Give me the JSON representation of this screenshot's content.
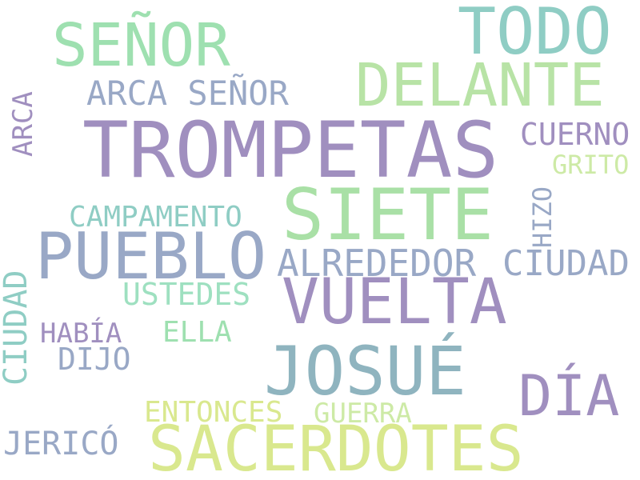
{
  "words": [
    {
      "text": "TROMPETAS",
      "color": "#a08fbf"
    },
    {
      "text": "SACERDOTES",
      "color": "#d9e88e"
    },
    {
      "text": "SIETE",
      "color": "#a9e0a6"
    },
    {
      "text": "PUEBLO",
      "color": "#99a8c6"
    },
    {
      "text": "JOSUÉ",
      "color": "#8fb4bf"
    },
    {
      "text": "VUELTA",
      "color": "#a08fbf"
    },
    {
      "text": "DELANTE",
      "color": "#b8e3a6"
    },
    {
      "text": "TODO",
      "color": "#8fcdc4"
    },
    {
      "text": "SEÑOR",
      "color": "#9ee0b0"
    },
    {
      "text": "DÍA",
      "color": "#a08fbf"
    },
    {
      "text": "ALREDEDOR",
      "color": "#99a8c6"
    },
    {
      "text": "CIUDAD",
      "color": "#99a8c6"
    },
    {
      "text": "ARCA SEÑOR",
      "color": "#99a8c6"
    },
    {
      "text": "CUERNO",
      "color": "#a08fbf"
    },
    {
      "text": "USTEDES",
      "color": "#9ee0c0"
    },
    {
      "text": "ENTONCES",
      "color": "#d9e88e"
    },
    {
      "text": "GUERRA",
      "color": "#cdeaa6"
    },
    {
      "text": "JERICÓ",
      "color": "#99a8c6"
    },
    {
      "text": "CAMPAMENTO",
      "color": "#8fcdc4"
    },
    {
      "text": "HABÍA",
      "color": "#a08fbf"
    },
    {
      "text": "ELLA",
      "color": "#9ee0b0"
    },
    {
      "text": "DIJO",
      "color": "#99a8c6"
    },
    {
      "text": "GRITO",
      "color": "#cdeaa6"
    },
    {
      "text": "CIUDAD",
      "color": "#8fcdc4"
    },
    {
      "text": "ARCA",
      "color": "#a08fbf"
    },
    {
      "text": "HIZO",
      "color": "#99a8c6"
    }
  ]
}
